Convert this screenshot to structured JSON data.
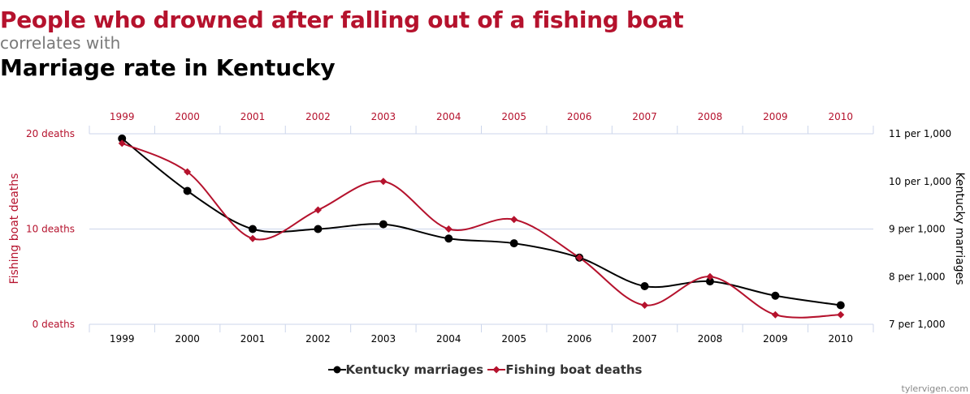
{
  "header": {
    "title": "People who drowned after falling out of a fishing boat",
    "connector": "correlates with",
    "subtitle": "Marriage rate in Kentucky"
  },
  "credit": "tylervigen.com",
  "colors": {
    "fishing": "#b5122d",
    "marriage": "#000000",
    "grid": "#ccd6eb"
  },
  "chart_data": {
    "type": "line",
    "x": [
      "1999",
      "2000",
      "2001",
      "2002",
      "2003",
      "2004",
      "2005",
      "2006",
      "2007",
      "2008",
      "2009",
      "2010"
    ],
    "series": [
      {
        "name": "Kentucky marriages",
        "axis": "right",
        "marker": "circle",
        "values": [
          10.9,
          9.8,
          9.0,
          9.0,
          9.1,
          8.8,
          8.7,
          8.4,
          7.8,
          7.9,
          7.6,
          7.4
        ]
      },
      {
        "name": "Fishing boat deaths",
        "axis": "left",
        "marker": "diamond",
        "values": [
          19,
          16,
          9,
          12,
          15,
          10,
          11,
          7,
          2,
          5,
          1,
          1
        ]
      }
    ],
    "y_left": {
      "label": "Fishing boat deaths",
      "range": [
        0,
        20
      ],
      "ticks": [
        0,
        10,
        20
      ],
      "tick_labels": [
        "0 deaths",
        "10 deaths",
        "20 deaths"
      ]
    },
    "y_right": {
      "label": "Kentucky marriages",
      "range": [
        7,
        11
      ],
      "ticks": [
        7,
        8,
        9,
        10,
        11
      ],
      "tick_labels": [
        "7 per 1,000",
        "8 per 1,000",
        "9 per 1,000",
        "10 per 1,000",
        "11 per 1,000"
      ]
    },
    "grid": true,
    "legend": "bottom-center"
  }
}
